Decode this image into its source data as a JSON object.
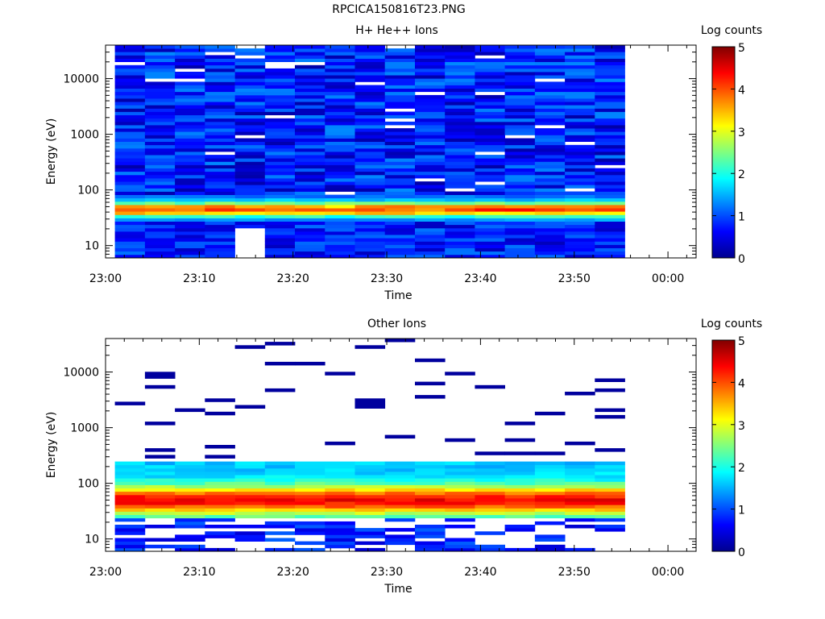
{
  "figure_title": "RPCICA150816T23.PNG",
  "chart_data": [
    {
      "type": "heatmap",
      "title": "H+ He++ Ions",
      "xlabel": "Time",
      "ylabel": "Energy (eV)",
      "colorbar_label": "Log counts",
      "colorbar_ticks": [
        "0",
        "1",
        "2",
        "3",
        "4",
        "5"
      ],
      "colorbar_range": [
        0,
        5
      ],
      "y_scale": "log",
      "ylim": [
        6,
        40000
      ],
      "y_ticks": [
        {
          "value": 10,
          "label": "10"
        },
        {
          "value": 100,
          "label": "100"
        },
        {
          "value": 1000,
          "label": "1000"
        },
        {
          "value": 10000,
          "label": "10000"
        }
      ],
      "x_range_min": [
        0,
        63
      ],
      "x_ticks": [
        {
          "value": 0,
          "label": "23:00"
        },
        {
          "value": 10,
          "label": "23:10"
        },
        {
          "value": 20,
          "label": "23:20"
        },
        {
          "value": 30,
          "label": "23:30"
        },
        {
          "value": 40,
          "label": "23:40"
        },
        {
          "value": 50,
          "label": "23:50"
        },
        {
          "value": 60,
          "label": "00:00"
        }
      ],
      "sweep_starts_min": [
        1,
        4.2,
        7.4,
        10.6,
        13.8,
        17,
        20.2,
        23.4,
        26.6,
        29.8,
        33,
        36.2,
        39.4,
        42.6,
        45.8,
        49,
        52.2
      ],
      "sweep_width_min": 3.2,
      "profile": "hplus"
    },
    {
      "type": "heatmap",
      "title": "Other Ions",
      "xlabel": "Time",
      "ylabel": "Energy (eV)",
      "colorbar_label": "Log counts",
      "colorbar_ticks": [
        "0",
        "1",
        "2",
        "3",
        "4",
        "5"
      ],
      "colorbar_range": [
        0,
        5
      ],
      "y_scale": "log",
      "ylim": [
        6,
        40000
      ],
      "y_ticks": [
        {
          "value": 10,
          "label": "10"
        },
        {
          "value": 100,
          "label": "100"
        },
        {
          "value": 1000,
          "label": "1000"
        },
        {
          "value": 10000,
          "label": "10000"
        }
      ],
      "x_range_min": [
        0,
        63
      ],
      "x_ticks": [
        {
          "value": 0,
          "label": "23:00"
        },
        {
          "value": 10,
          "label": "23:10"
        },
        {
          "value": 20,
          "label": "23:20"
        },
        {
          "value": 30,
          "label": "23:30"
        },
        {
          "value": 40,
          "label": "23:40"
        },
        {
          "value": 50,
          "label": "23:50"
        },
        {
          "value": 60,
          "label": "00:00"
        }
      ],
      "sweep_starts_min": [
        1,
        4.2,
        7.4,
        10.6,
        13.8,
        17,
        20.2,
        23.4,
        26.6,
        29.8,
        33,
        36.2,
        39.4,
        42.6,
        45.8,
        49,
        52.2
      ],
      "sweep_width_min": 3.2,
      "profile": "other"
    }
  ]
}
